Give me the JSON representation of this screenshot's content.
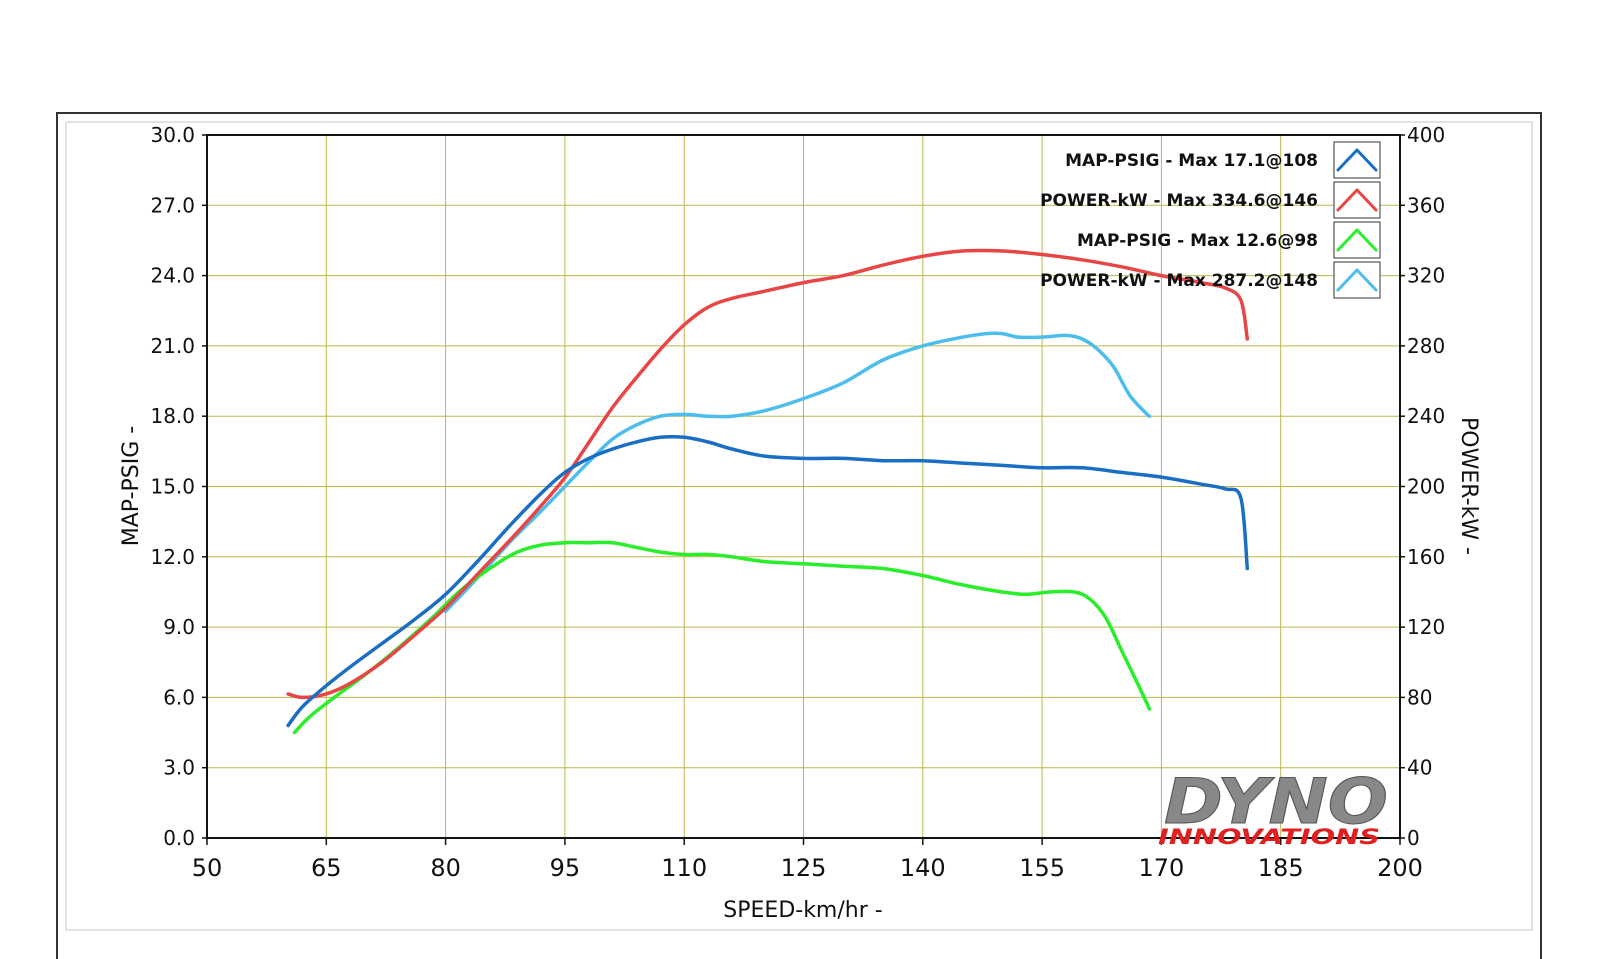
{
  "chart_data": {
    "type": "line",
    "xlabel": "SPEED-km/hr -",
    "ylabel_left": "MAP-PSIG -",
    "ylabel_right": "POWER-kW -",
    "xlim": [
      50,
      200
    ],
    "ylim_left": [
      0,
      30
    ],
    "ylim_right": [
      0,
      400
    ],
    "x_ticks": [
      "50",
      "65",
      "80",
      "95",
      "110",
      "125",
      "140",
      "155",
      "170",
      "185",
      "200"
    ],
    "y_left_ticks": [
      "0.0",
      "3.0",
      "6.0",
      "9.0",
      "12.0",
      "15.0",
      "18.0",
      "21.0",
      "24.0",
      "27.0",
      "30.0"
    ],
    "y_right_ticks": [
      "0",
      "40",
      "80",
      "120",
      "160",
      "200",
      "240",
      "280",
      "320",
      "360",
      "400"
    ],
    "grid": true,
    "legend_position": "top-right",
    "series": [
      {
        "name": "MAP-PSIG -  Max 17.1@108",
        "axis": "left",
        "color": "#1a6fc4",
        "points": [
          [
            60.2,
            4.8
          ],
          [
            62,
            5.6
          ],
          [
            65,
            6.5
          ],
          [
            68,
            7.3
          ],
          [
            72,
            8.3
          ],
          [
            76,
            9.3
          ],
          [
            80,
            10.4
          ],
          [
            84,
            11.8
          ],
          [
            88,
            13.3
          ],
          [
            92,
            14.7
          ],
          [
            95,
            15.6
          ],
          [
            98,
            16.2
          ],
          [
            101,
            16.6
          ],
          [
            104,
            16.9
          ],
          [
            107,
            17.1
          ],
          [
            110,
            17.1
          ],
          [
            113,
            16.9
          ],
          [
            116,
            16.6
          ],
          [
            120,
            16.3
          ],
          [
            125,
            16.2
          ],
          [
            130,
            16.2
          ],
          [
            135,
            16.1
          ],
          [
            140,
            16.1
          ],
          [
            145,
            16.0
          ],
          [
            150,
            15.9
          ],
          [
            155,
            15.8
          ],
          [
            160,
            15.8
          ],
          [
            165,
            15.6
          ],
          [
            170,
            15.4
          ],
          [
            175,
            15.1
          ],
          [
            178,
            14.9
          ],
          [
            180,
            14.5
          ],
          [
            180.8,
            11.5
          ]
        ]
      },
      {
        "name": "POWER-kW -  Max 334.6@146",
        "axis": "right",
        "color": "#e84646",
        "points": [
          [
            60.2,
            82
          ],
          [
            62,
            80
          ],
          [
            65,
            82
          ],
          [
            68,
            88
          ],
          [
            72,
            100
          ],
          [
            76,
            115
          ],
          [
            80,
            131
          ],
          [
            84,
            150
          ],
          [
            88,
            169
          ],
          [
            92,
            189
          ],
          [
            95,
            205
          ],
          [
            98,
            225
          ],
          [
            101,
            245
          ],
          [
            104,
            262
          ],
          [
            107,
            278
          ],
          [
            110,
            292
          ],
          [
            113,
            302
          ],
          [
            116,
            307
          ],
          [
            120,
            311
          ],
          [
            125,
            316
          ],
          [
            130,
            320
          ],
          [
            135,
            326
          ],
          [
            140,
            331
          ],
          [
            145,
            334
          ],
          [
            150,
            334
          ],
          [
            155,
            332
          ],
          [
            160,
            329
          ],
          [
            165,
            325
          ],
          [
            170,
            320
          ],
          [
            175,
            316
          ],
          [
            178,
            313
          ],
          [
            180,
            306
          ],
          [
            180.8,
            284
          ]
        ]
      },
      {
        "name": "MAP-PSIG -  Max 12.6@98",
        "axis": "left",
        "color": "#2aee2a",
        "points": [
          [
            61,
            4.5
          ],
          [
            63,
            5.2
          ],
          [
            66,
            6.0
          ],
          [
            70,
            7.0
          ],
          [
            74,
            8.1
          ],
          [
            78,
            9.3
          ],
          [
            82,
            10.6
          ],
          [
            86,
            11.6
          ],
          [
            89,
            12.2
          ],
          [
            92,
            12.5
          ],
          [
            95,
            12.6
          ],
          [
            98,
            12.6
          ],
          [
            101,
            12.6
          ],
          [
            104,
            12.4
          ],
          [
            107,
            12.2
          ],
          [
            110,
            12.1
          ],
          [
            113,
            12.1
          ],
          [
            116,
            12.0
          ],
          [
            120,
            11.8
          ],
          [
            125,
            11.7
          ],
          [
            130,
            11.6
          ],
          [
            135,
            11.5
          ],
          [
            140,
            11.2
          ],
          [
            145,
            10.8
          ],
          [
            150,
            10.5
          ],
          [
            153,
            10.4
          ],
          [
            156,
            10.5
          ],
          [
            159,
            10.5
          ],
          [
            161,
            10.2
          ],
          [
            163,
            9.4
          ],
          [
            165,
            8.0
          ],
          [
            167,
            6.6
          ],
          [
            168.5,
            5.5
          ]
        ]
      },
      {
        "name": "POWER-kW -  Max 287.2@148",
        "axis": "right",
        "color": "#4cbdec",
        "points": [
          [
            80,
            129
          ],
          [
            84,
            148
          ],
          [
            88,
            168
          ],
          [
            92,
            186
          ],
          [
            95,
            200
          ],
          [
            98,
            214
          ],
          [
            101,
            227
          ],
          [
            104,
            235
          ],
          [
            107,
            240
          ],
          [
            110,
            241
          ],
          [
            113,
            240
          ],
          [
            116,
            240
          ],
          [
            120,
            243
          ],
          [
            125,
            250
          ],
          [
            130,
            259
          ],
          [
            135,
            272
          ],
          [
            140,
            280
          ],
          [
            145,
            285
          ],
          [
            148,
            287
          ],
          [
            150,
            287
          ],
          [
            152,
            285
          ],
          [
            155,
            285
          ],
          [
            158,
            286
          ],
          [
            160,
            284
          ],
          [
            162,
            278
          ],
          [
            164,
            268
          ],
          [
            166,
            252
          ],
          [
            168,
            242
          ],
          [
            168.5,
            240
          ]
        ]
      }
    ]
  },
  "logo": {
    "line1": "DYNO",
    "line2": "INNOVATIONS"
  }
}
